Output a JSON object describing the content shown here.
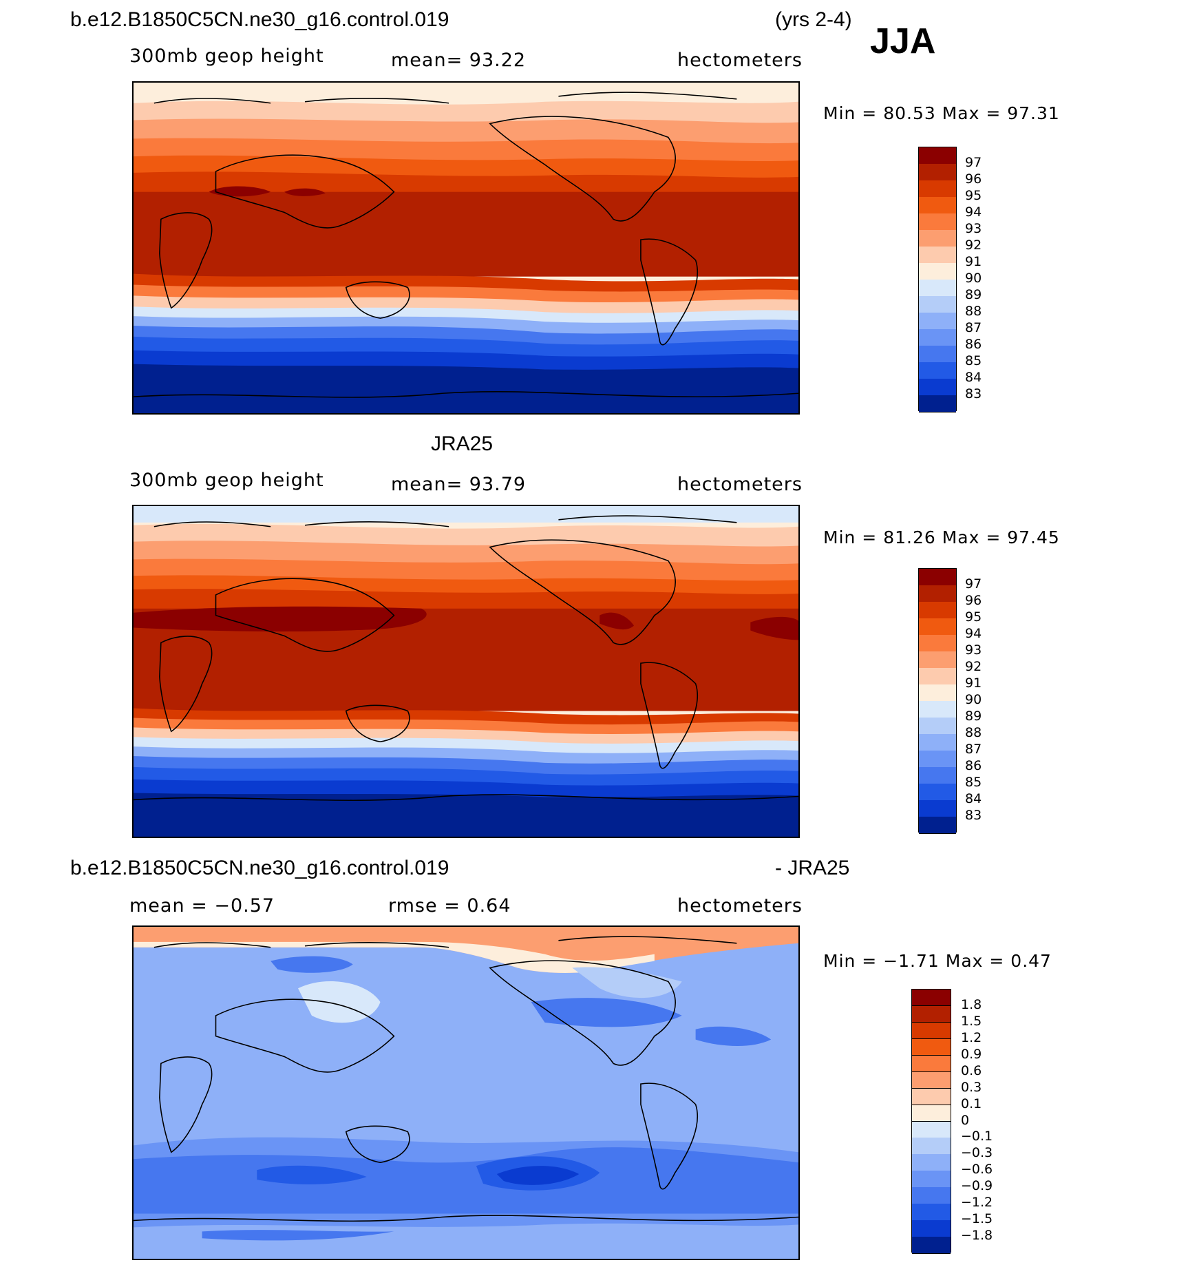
{
  "header": {
    "case_name": "b.e12.B1850C5CN.ne30_g16.control.019",
    "years": "(yrs 2-4)",
    "season": "JJA"
  },
  "panels": [
    {
      "id": "model",
      "variable": "300mb geop height",
      "stat": "mean=   93.22",
      "units": "hectometers",
      "minmax": "Min =   80.53  Max =   97.31"
    },
    {
      "id": "obs",
      "title": "JRA25",
      "variable": "300mb geop height",
      "stat": "mean=   93.79",
      "units": "hectometers",
      "minmax": "Min =   81.26  Max =   97.45"
    },
    {
      "id": "diff",
      "case_name": "b.e12.B1850C5CN.ne30_g16.control.019",
      "minus_label": "- JRA25",
      "stat_mean": "mean =   −0.57",
      "stat_rmse": "rmse =    0.64",
      "units": "hectometers",
      "minmax": "Min =   −1.71  Max =    0.47"
    }
  ],
  "colorbar_abs": {
    "labels": [
      "97",
      "96",
      "95",
      "94",
      "93",
      "92",
      "91",
      "90",
      "89",
      "88",
      "87",
      "86",
      "85",
      "84",
      "83"
    ],
    "colors": [
      "#8b0000",
      "#b22000",
      "#d83a00",
      "#f05a10",
      "#fa7a3c",
      "#fc9e70",
      "#fdcbae",
      "#fdeedc",
      "#d8e8fa",
      "#b4cdf8",
      "#8eb0f8",
      "#6a94f5",
      "#4677ef",
      "#225ae6",
      "#0a3bd0",
      "#00208f"
    ]
  },
  "colorbar_diff": {
    "labels": [
      "1.8",
      "1.5",
      "1.2",
      "0.9",
      "0.6",
      "0.3",
      "0.1",
      "0",
      "−0.1",
      "−0.3",
      "−0.6",
      "−0.9",
      "−1.2",
      "−1.5",
      "−1.8"
    ],
    "colors": [
      "#8b0000",
      "#b22000",
      "#d83a00",
      "#f05a10",
      "#fa7a3c",
      "#fc9e70",
      "#fdcbae",
      "#fdeedc",
      "#d8e8fa",
      "#b4cdf8",
      "#8eb0f8",
      "#6a94f5",
      "#4677ef",
      "#225ae6",
      "#0a3bd0",
      "#00208f"
    ]
  }
}
